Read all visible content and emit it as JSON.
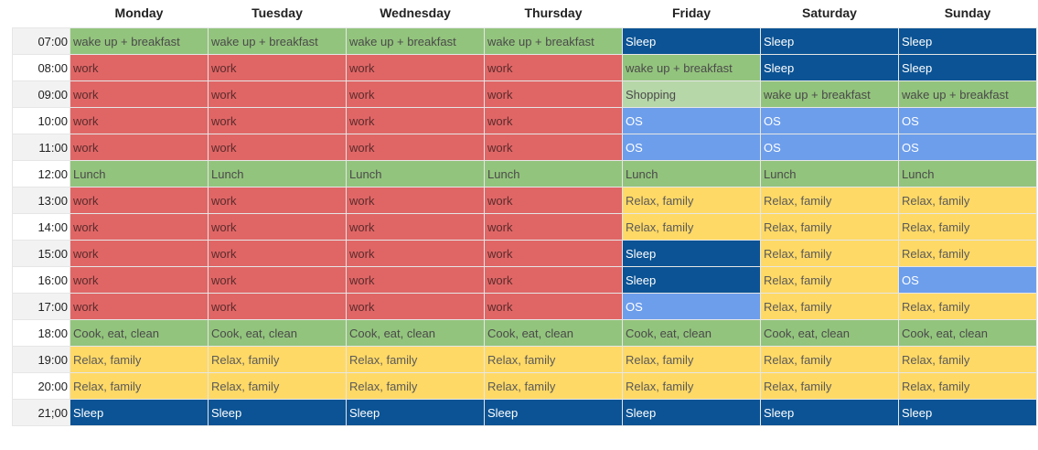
{
  "days": [
    "Monday",
    "Tuesday",
    "Wednesday",
    "Thursday",
    "Friday",
    "Saturday",
    "Sunday"
  ],
  "colors": {
    "green": "#93c47d",
    "red": "#e06666",
    "blue": "#6d9eeb",
    "navy": "#0b5394",
    "yellow": "#ffd966",
    "lgreen": "#b6d7a8"
  },
  "rows": [
    {
      "time": "07:00",
      "cells": [
        {
          "text": "wake up + breakfast",
          "color": "green"
        },
        {
          "text": "wake up + breakfast",
          "color": "green"
        },
        {
          "text": "wake up + breakfast",
          "color": "green"
        },
        {
          "text": "wake up + breakfast",
          "color": "green"
        },
        {
          "text": "Sleep",
          "color": "navy"
        },
        {
          "text": "Sleep",
          "color": "navy"
        },
        {
          "text": "Sleep",
          "color": "navy"
        }
      ]
    },
    {
      "time": "08:00",
      "cells": [
        {
          "text": "work",
          "color": "red"
        },
        {
          "text": "work",
          "color": "red"
        },
        {
          "text": "work",
          "color": "red"
        },
        {
          "text": "work",
          "color": "red"
        },
        {
          "text": "wake up + breakfast",
          "color": "green"
        },
        {
          "text": "Sleep",
          "color": "navy"
        },
        {
          "text": "Sleep",
          "color": "navy"
        }
      ]
    },
    {
      "time": "09:00",
      "cells": [
        {
          "text": "work",
          "color": "red"
        },
        {
          "text": "work",
          "color": "red"
        },
        {
          "text": "work",
          "color": "red"
        },
        {
          "text": "work",
          "color": "red"
        },
        {
          "text": "Shopping",
          "color": "lgreen"
        },
        {
          "text": "wake up + breakfast",
          "color": "green"
        },
        {
          "text": "wake up + breakfast",
          "color": "green"
        }
      ]
    },
    {
      "time": "10:00",
      "cells": [
        {
          "text": "work",
          "color": "red"
        },
        {
          "text": "work",
          "color": "red"
        },
        {
          "text": "work",
          "color": "red"
        },
        {
          "text": "work",
          "color": "red"
        },
        {
          "text": "OS",
          "color": "blue"
        },
        {
          "text": "OS",
          "color": "blue"
        },
        {
          "text": "OS",
          "color": "blue"
        }
      ]
    },
    {
      "time": "11:00",
      "cells": [
        {
          "text": "work",
          "color": "red"
        },
        {
          "text": "work",
          "color": "red"
        },
        {
          "text": "work",
          "color": "red"
        },
        {
          "text": "work",
          "color": "red"
        },
        {
          "text": "OS",
          "color": "blue"
        },
        {
          "text": "OS",
          "color": "blue"
        },
        {
          "text": "OS",
          "color": "blue"
        }
      ]
    },
    {
      "time": "12:00",
      "cells": [
        {
          "text": "Lunch",
          "color": "green"
        },
        {
          "text": "Lunch",
          "color": "green"
        },
        {
          "text": "Lunch",
          "color": "green"
        },
        {
          "text": "Lunch",
          "color": "green"
        },
        {
          "text": "Lunch",
          "color": "green"
        },
        {
          "text": "Lunch",
          "color": "green"
        },
        {
          "text": "Lunch",
          "color": "green"
        }
      ]
    },
    {
      "time": "13:00",
      "cells": [
        {
          "text": "work",
          "color": "red"
        },
        {
          "text": "work",
          "color": "red"
        },
        {
          "text": "work",
          "color": "red"
        },
        {
          "text": "work",
          "color": "red"
        },
        {
          "text": "Relax, family",
          "color": "yellow"
        },
        {
          "text": "Relax, family",
          "color": "yellow"
        },
        {
          "text": "Relax, family",
          "color": "yellow"
        }
      ]
    },
    {
      "time": "14:00",
      "cells": [
        {
          "text": "work",
          "color": "red"
        },
        {
          "text": "work",
          "color": "red"
        },
        {
          "text": "work",
          "color": "red"
        },
        {
          "text": "work",
          "color": "red"
        },
        {
          "text": "Relax, family",
          "color": "yellow"
        },
        {
          "text": "Relax, family",
          "color": "yellow"
        },
        {
          "text": "Relax, family",
          "color": "yellow"
        }
      ]
    },
    {
      "time": "15:00",
      "cells": [
        {
          "text": "work",
          "color": "red"
        },
        {
          "text": "work",
          "color": "red"
        },
        {
          "text": "work",
          "color": "red"
        },
        {
          "text": "work",
          "color": "red"
        },
        {
          "text": "Sleep",
          "color": "navy"
        },
        {
          "text": "Relax, family",
          "color": "yellow"
        },
        {
          "text": "Relax, family",
          "color": "yellow"
        }
      ]
    },
    {
      "time": "16:00",
      "cells": [
        {
          "text": "work",
          "color": "red"
        },
        {
          "text": "work",
          "color": "red"
        },
        {
          "text": "work",
          "color": "red"
        },
        {
          "text": "work",
          "color": "red"
        },
        {
          "text": "Sleep",
          "color": "navy"
        },
        {
          "text": "Relax, family",
          "color": "yellow"
        },
        {
          "text": "OS",
          "color": "blue"
        }
      ]
    },
    {
      "time": "17:00",
      "cells": [
        {
          "text": "work",
          "color": "red"
        },
        {
          "text": "work",
          "color": "red"
        },
        {
          "text": "work",
          "color": "red"
        },
        {
          "text": "work",
          "color": "red"
        },
        {
          "text": "OS",
          "color": "blue"
        },
        {
          "text": "Relax, family",
          "color": "yellow"
        },
        {
          "text": "Relax, family",
          "color": "yellow"
        }
      ]
    },
    {
      "time": "18:00",
      "cells": [
        {
          "text": "Cook, eat, clean",
          "color": "green"
        },
        {
          "text": "Cook, eat, clean",
          "color": "green"
        },
        {
          "text": "Cook, eat, clean",
          "color": "green"
        },
        {
          "text": "Cook, eat, clean",
          "color": "green"
        },
        {
          "text": "Cook, eat, clean",
          "color": "green"
        },
        {
          "text": "Cook, eat, clean",
          "color": "green"
        },
        {
          "text": "Cook, eat, clean",
          "color": "green"
        }
      ]
    },
    {
      "time": "19:00",
      "cells": [
        {
          "text": "Relax, family",
          "color": "yellow"
        },
        {
          "text": "Relax, family",
          "color": "yellow"
        },
        {
          "text": "Relax, family",
          "color": "yellow"
        },
        {
          "text": "Relax, family",
          "color": "yellow"
        },
        {
          "text": "Relax, family",
          "color": "yellow"
        },
        {
          "text": "Relax, family",
          "color": "yellow"
        },
        {
          "text": "Relax, family",
          "color": "yellow"
        }
      ]
    },
    {
      "time": "20:00",
      "cells": [
        {
          "text": "Relax, family",
          "color": "yellow"
        },
        {
          "text": "Relax, family",
          "color": "yellow"
        },
        {
          "text": "Relax, family",
          "color": "yellow"
        },
        {
          "text": "Relax, family",
          "color": "yellow"
        },
        {
          "text": "Relax, family",
          "color": "yellow"
        },
        {
          "text": "Relax, family",
          "color": "yellow"
        },
        {
          "text": "Relax, family",
          "color": "yellow"
        }
      ]
    },
    {
      "time": "21;00",
      "cells": [
        {
          "text": "Sleep",
          "color": "navy"
        },
        {
          "text": "Sleep",
          "color": "navy"
        },
        {
          "text": "Sleep",
          "color": "navy"
        },
        {
          "text": "Sleep",
          "color": "navy"
        },
        {
          "text": "Sleep",
          "color": "navy"
        },
        {
          "text": "Sleep",
          "color": "navy"
        },
        {
          "text": "Sleep",
          "color": "navy"
        }
      ]
    }
  ]
}
